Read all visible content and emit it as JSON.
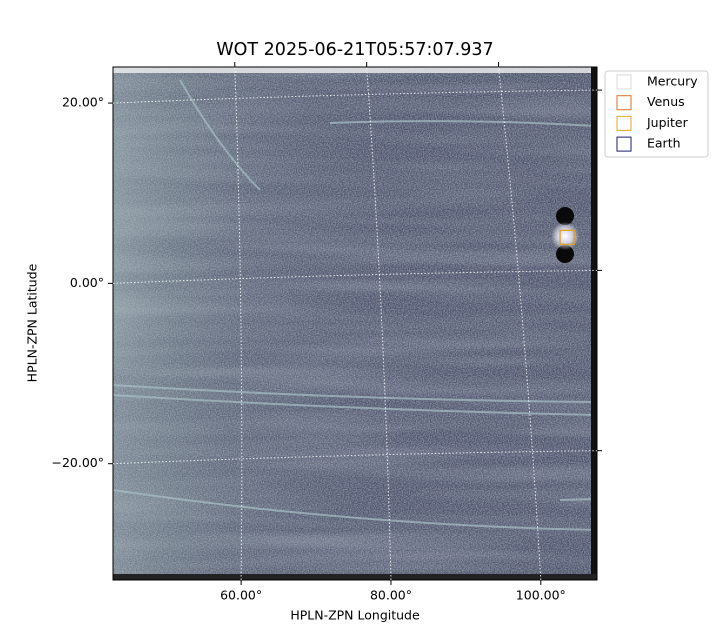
{
  "chart_data": {
    "type": "image",
    "title": "WOT 2025-06-21T05:57:07.937",
    "xlabel": "HPLN-ZPN Longitude",
    "ylabel": "HPLN-ZPN Latitude",
    "xlim": [
      42.9,
      107.5
    ],
    "ylim": [
      -32.9,
      24.0
    ],
    "xticks": [
      {
        "value": 60,
        "label": "60.00°"
      },
      {
        "value": 80,
        "label": "80.00°"
      },
      {
        "value": 100,
        "label": "100.00°"
      }
    ],
    "yticks": [
      {
        "value": 20,
        "label": "20.00°"
      },
      {
        "value": 0,
        "label": "0.00°"
      },
      {
        "value": -20,
        "label": "−20.00°"
      }
    ],
    "grid": true,
    "legend": "upper right outside",
    "series": [
      {
        "name": "Mercury",
        "color": "#d8d8d8",
        "x": [],
        "y": []
      },
      {
        "name": "Venus",
        "color": "#d9722a",
        "x": [
          103.5
        ],
        "y": [
          5.1
        ]
      },
      {
        "name": "Jupiter",
        "color": "#e0a526",
        "x": [
          103.5
        ],
        "y": [
          5.1
        ]
      },
      {
        "name": "Earth",
        "color": "#1a1a6e",
        "x": [],
        "y": []
      }
    ]
  }
}
